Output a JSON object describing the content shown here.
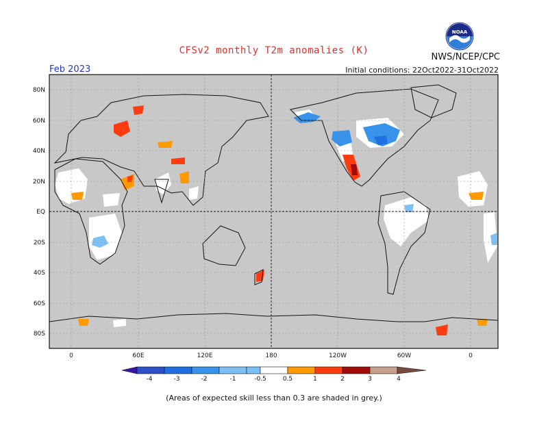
{
  "header": {
    "title": "CFSv2 monthly T2m anomalies (K)",
    "agency": "NWS/NCEP/CPC",
    "logo_text": "NOAA",
    "month": "Feb 2023",
    "initial_conditions": "Initial conditions: 22Oct2022-31Oct2022"
  },
  "map": {
    "lat_labels": [
      "80N",
      "60N",
      "40N",
      "20N",
      "EQ",
      "20S",
      "40S",
      "60S",
      "80S"
    ],
    "lon_labels": [
      "0",
      "60E",
      "120E",
      "180",
      "120W",
      "60W",
      "0"
    ]
  },
  "colorbar": {
    "labels": [
      "-4",
      "-3",
      "-2",
      "-1",
      "-0.5",
      "0.5",
      "1",
      "2",
      "3",
      "4"
    ],
    "colors": {
      "lt_m4": "#3a16a8",
      "m4_m3": "#2d50c8",
      "m3_m2": "#1f6fe0",
      "m2_m1": "#3a93ea",
      "m1_m05": "#7cc0f5",
      "neutral": "#ffffff",
      "p05_p1": "#ff9a00",
      "p1_p2": "#ff3c10",
      "p2_p3": "#a00c0c",
      "p3_p4": "#c7a08e",
      "gt_p4": "#7a4a3c"
    }
  },
  "footer": {
    "note": "(Areas of expected skill less than 0.3 are shaded in grey.)"
  }
}
